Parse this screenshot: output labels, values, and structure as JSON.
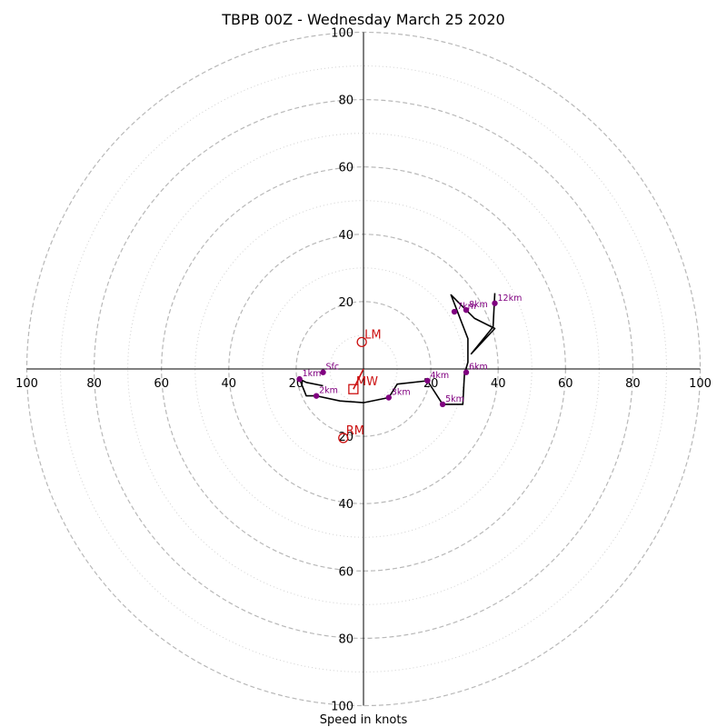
{
  "chart_data": {
    "type": "hodograph",
    "title": "TBPB 00Z - Wednesday March 25 2020",
    "xlabel": "Speed in knots",
    "units": "knots",
    "range": [
      -100,
      100
    ],
    "rings_major": [
      20,
      40,
      60,
      80,
      100
    ],
    "rings_minor": [
      10,
      30,
      50,
      70,
      90
    ],
    "x_ticks": [
      "100",
      "80",
      "60",
      "40",
      "20",
      "20",
      "40",
      "60",
      "80",
      "100"
    ],
    "x_tick_values": [
      -100,
      -80,
      -60,
      -40,
      -20,
      20,
      40,
      60,
      80,
      100
    ],
    "y_ticks": [
      "100",
      "80",
      "60",
      "40",
      "20",
      "20",
      "40",
      "60",
      "80",
      "100"
    ],
    "y_tick_values": [
      100,
      80,
      60,
      40,
      20,
      -20,
      -40,
      -60,
      -80,
      -100
    ],
    "trace": [
      [
        -12,
        -5
      ],
      [
        -17,
        -4
      ],
      [
        -19,
        -3
      ],
      [
        -17,
        -8
      ],
      [
        -14,
        -8
      ],
      [
        -7,
        -9.5
      ],
      [
        0,
        -10
      ],
      [
        7.5,
        -8.5
      ],
      [
        10,
        -4.5
      ],
      [
        19,
        -3.5
      ],
      [
        23.5,
        -10.5
      ],
      [
        29.5,
        -10.5
      ],
      [
        30,
        -1.5
      ],
      [
        31,
        2
      ],
      [
        31,
        9
      ],
      [
        28.5,
        15.5
      ],
      [
        26,
        22
      ],
      [
        30,
        18
      ],
      [
        33,
        15
      ],
      [
        39,
        12
      ],
      [
        32,
        4.5
      ],
      [
        38.5,
        12.5
      ],
      [
        39,
        22.5
      ]
    ],
    "height_markers": [
      {
        "label": "Sfc",
        "u": -12,
        "v": -1
      },
      {
        "label": "1km",
        "u": -19,
        "v": -3
      },
      {
        "label": "2km",
        "u": -14,
        "v": -8
      },
      {
        "label": "3km",
        "u": 7.5,
        "v": -8.5
      },
      {
        "label": "4km",
        "u": 19,
        "v": -3.5
      },
      {
        "label": "5km",
        "u": 23.5,
        "v": -10.5
      },
      {
        "label": "6km",
        "u": 30.5,
        "v": -1
      },
      {
        "label": "7km",
        "u": 27,
        "v": 17
      },
      {
        "label": "8km",
        "u": 30.5,
        "v": 17.5
      },
      {
        "label": "12km",
        "u": 39,
        "v": 19.5
      }
    ],
    "storm_motion": [
      {
        "label": "LM",
        "u": -0.5,
        "v": 8,
        "marker": "circle"
      },
      {
        "label": "MW",
        "u": -3,
        "v": -6,
        "marker": "square"
      },
      {
        "label": "RM",
        "u": -6,
        "v": -20.5,
        "marker": "circle"
      }
    ],
    "storm_vector": {
      "from": [
        0,
        0
      ],
      "to": [
        -3,
        -6
      ]
    },
    "colors": {
      "trace": "#000000",
      "markers": "#800080",
      "storm": "#cc1111",
      "rings": "#b8b8b8",
      "axes": "#000000"
    }
  }
}
